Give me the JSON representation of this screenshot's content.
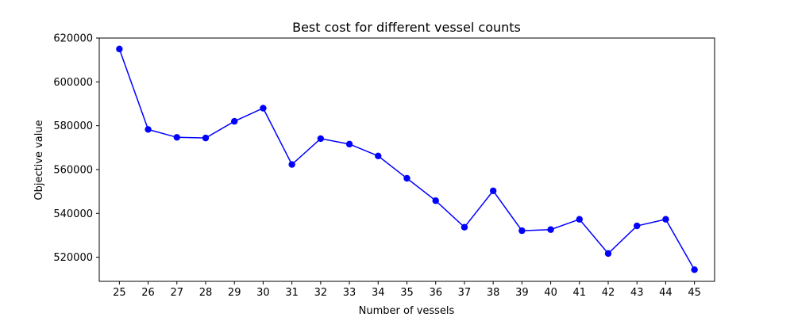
{
  "chart_data": {
    "type": "line",
    "title": "Best cost for different vessel counts",
    "xlabel": "Number of vessels",
    "ylabel": "Objective value",
    "x": [
      25,
      26,
      27,
      28,
      29,
      30,
      31,
      32,
      33,
      34,
      35,
      36,
      37,
      38,
      39,
      40,
      41,
      42,
      43,
      44,
      45
    ],
    "series": [
      {
        "name": "",
        "color": "#0000ff",
        "marker": "circle",
        "values": [
          615000,
          578300,
          574700,
          574400,
          582000,
          588000,
          562300,
          574100,
          571600,
          566200,
          556000,
          545800,
          533700,
          550300,
          532100,
          532600,
          537300,
          521700,
          534300,
          537300,
          514300
        ]
      }
    ],
    "xlim": [
      24.3,
      45.7
    ],
    "ylim": [
      509000,
      620000
    ],
    "yticks": [
      520000,
      540000,
      560000,
      580000,
      600000,
      620000
    ],
    "xticks": [
      25,
      26,
      27,
      28,
      29,
      30,
      31,
      32,
      33,
      34,
      35,
      36,
      37,
      38,
      39,
      40,
      41,
      42,
      43,
      44,
      45
    ],
    "grid": false,
    "legend": "none"
  }
}
